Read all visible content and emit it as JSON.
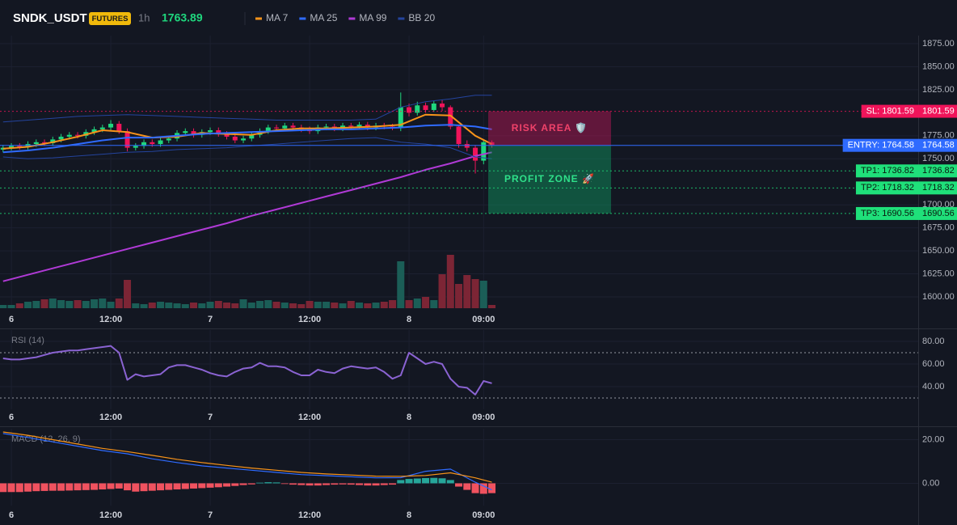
{
  "header": {
    "symbol": "SNDK_USDT",
    "badge": "FUTURES",
    "interval": "1h",
    "price": 1763.89
  },
  "chart_data": [
    {
      "type": "candlestick",
      "x": [
        -1,
        0,
        1,
        2,
        3,
        4,
        5,
        6,
        7,
        8,
        9,
        10,
        11,
        12,
        13,
        14,
        15,
        16,
        17,
        18,
        19,
        20,
        21,
        22,
        23,
        24,
        25,
        26,
        27,
        28,
        29,
        30,
        31,
        32,
        33,
        34,
        35,
        36,
        37,
        38,
        39,
        40,
        41,
        42,
        43,
        44,
        45,
        46,
        47,
        48,
        49,
        50,
        51,
        52,
        53,
        54,
        55,
        56,
        57,
        58
      ],
      "open": [
        1760,
        1762,
        1764,
        1763,
        1766,
        1768,
        1767,
        1771,
        1774,
        1776,
        1775,
        1779,
        1782,
        1784,
        1788,
        1780,
        1762,
        1764,
        1768,
        1766,
        1770,
        1772,
        1778,
        1780,
        1776,
        1779,
        1781,
        1777,
        1774,
        1770,
        1772,
        1776,
        1780,
        1784,
        1783,
        1786,
        1784,
        1782,
        1780,
        1784,
        1785,
        1783,
        1786,
        1785,
        1787,
        1784,
        1786,
        1785,
        1784,
        1806,
        1800,
        1808,
        1803,
        1810,
        1806,
        1785,
        1766,
        1762,
        1748,
        1768
      ],
      "high": [
        1765,
        1767,
        1767,
        1769,
        1771,
        1771,
        1774,
        1777,
        1779,
        1779,
        1782,
        1785,
        1787,
        1792,
        1791,
        1783,
        1767,
        1771,
        1771,
        1773,
        1775,
        1781,
        1783,
        1783,
        1782,
        1784,
        1784,
        1780,
        1777,
        1775,
        1779,
        1783,
        1787,
        1787,
        1789,
        1789,
        1787,
        1785,
        1787,
        1788,
        1788,
        1789,
        1789,
        1790,
        1790,
        1789,
        1789,
        1788,
        1822,
        1810,
        1812,
        1811,
        1813,
        1814,
        1808,
        1787,
        1770,
        1765,
        1771,
        1770
      ],
      "low": [
        1757,
        1759,
        1760,
        1760,
        1763,
        1764,
        1764,
        1768,
        1771,
        1772,
        1772,
        1776,
        1779,
        1781,
        1777,
        1758,
        1759,
        1761,
        1763,
        1763,
        1767,
        1769,
        1775,
        1773,
        1773,
        1776,
        1774,
        1771,
        1767,
        1767,
        1769,
        1773,
        1777,
        1780,
        1780,
        1781,
        1779,
        1777,
        1777,
        1781,
        1780,
        1780,
        1782,
        1782,
        1781,
        1781,
        1782,
        1781,
        1780,
        1796,
        1797,
        1800,
        1801,
        1802,
        1782,
        1762,
        1758,
        1734,
        1744,
        1762
      ],
      "close": [
        1762,
        1764,
        1763,
        1766,
        1768,
        1767,
        1771,
        1774,
        1776,
        1775,
        1779,
        1782,
        1784,
        1788,
        1780,
        1762,
        1764,
        1768,
        1766,
        1770,
        1772,
        1778,
        1780,
        1776,
        1779,
        1781,
        1777,
        1774,
        1770,
        1772,
        1776,
        1780,
        1784,
        1783,
        1786,
        1784,
        1782,
        1780,
        1784,
        1785,
        1783,
        1786,
        1785,
        1787,
        1784,
        1786,
        1785,
        1784,
        1806,
        1800,
        1808,
        1803,
        1810,
        1806,
        1785,
        1766,
        1762,
        1748,
        1768,
        1765
      ],
      "up_color": "#1fd77e",
      "down_color": "#f0145a",
      "volume": {
        "values": [
          4,
          4,
          6,
          8,
          9,
          11,
          12,
          10,
          9,
          10,
          9,
          11,
          12,
          8,
          12,
          35,
          6,
          5,
          7,
          8,
          7,
          6,
          5,
          7,
          6,
          8,
          9,
          7,
          6,
          11,
          7,
          9,
          10,
          8,
          7,
          6,
          5,
          9,
          8,
          8,
          7,
          6,
          9,
          7,
          6,
          7,
          8,
          10,
          58,
          10,
          12,
          14,
          10,
          42,
          66,
          30,
          41,
          36,
          34,
          4
        ],
        "ylim": [
          0,
          70
        ],
        "up_color": "#1b5e57",
        "down_color": "#7c2535"
      },
      "overlays": [
        {
          "name": "MA 7",
          "color": "#f7931a",
          "x": [
            -1,
            2,
            5,
            8,
            11,
            14,
            17,
            20,
            23,
            26,
            29,
            32,
            35,
            38,
            41,
            44,
            47,
            50,
            53,
            56,
            58
          ],
          "values": [
            1761,
            1763,
            1768,
            1774,
            1781,
            1779,
            1773,
            1774,
            1778,
            1777,
            1776,
            1781,
            1783,
            1783,
            1784,
            1785,
            1787,
            1798,
            1797,
            1775,
            1766
          ]
        },
        {
          "name": "MA 25",
          "color": "#2f6bff",
          "x": [
            -1,
            2,
            5,
            8,
            11,
            14,
            17,
            20,
            23,
            26,
            29,
            32,
            35,
            38,
            41,
            44,
            47,
            50,
            53,
            56,
            58
          ],
          "values": [
            1757,
            1759,
            1762,
            1766,
            1770,
            1773,
            1773,
            1775,
            1777,
            1778,
            1779,
            1780,
            1781,
            1782,
            1782,
            1783,
            1784,
            1786,
            1787,
            1785,
            1782
          ]
        },
        {
          "name": "MA 99",
          "color": "#b03ad6",
          "x": [
            -1,
            2,
            5,
            8,
            11,
            14,
            17,
            20,
            23,
            26,
            29,
            32,
            35,
            38,
            41,
            44,
            47,
            50,
            53,
            56,
            58
          ],
          "values": [
            1617,
            1624,
            1631,
            1638,
            1645,
            1652,
            1659,
            1666,
            1673,
            1680,
            1688,
            1695,
            1702,
            1709,
            1716,
            1723,
            1730,
            1738,
            1745,
            1753,
            1757
          ]
        },
        {
          "name": "BB 20",
          "color": "#24449e",
          "x": [
            -1,
            2,
            5,
            8,
            11,
            14,
            17,
            20,
            23,
            26,
            29,
            32,
            35,
            38,
            41,
            44,
            47,
            50,
            53,
            56,
            58
          ],
          "upper": [
            1790,
            1792,
            1794,
            1796,
            1797,
            1798,
            1797,
            1796,
            1795,
            1794,
            1793,
            1792,
            1792,
            1792,
            1792,
            1793,
            1806,
            1812,
            1815,
            1819,
            1819
          ],
          "lower": [
            1752,
            1750,
            1751,
            1753,
            1755,
            1757,
            1758,
            1760,
            1761,
            1762,
            1764,
            1766,
            1768,
            1770,
            1772,
            1773,
            1768,
            1766,
            1762,
            1752,
            1750
          ]
        }
      ],
      "levels": [
        {
          "label": "SL: 1801.59",
          "value": 1801.59,
          "color": "#f0145a",
          "text_color": "#ffffff",
          "style": "dotted"
        },
        {
          "label": "ENTRY: 1764.58",
          "value": 1764.58,
          "color": "#2f6bff",
          "text_color": "#ffffff",
          "style": "solid"
        },
        {
          "label": "TP1: 1736.82",
          "value": 1736.82,
          "color": "#1fe07a",
          "text_color": "#0b1a10",
          "style": "dotted"
        },
        {
          "label": "TP2: 1718.32",
          "value": 1718.32,
          "color": "#1fe07a",
          "text_color": "#0b1a10",
          "style": "dotted"
        },
        {
          "label": "TP3: 1690.56",
          "value": 1690.56,
          "color": "#1fe07a",
          "text_color": "#0b1a10",
          "style": "dotted"
        }
      ],
      "zones": [
        {
          "label": "RISK AREA 🛡️",
          "from": 1801.59,
          "to": 1764.58,
          "color": "#c2185b",
          "text_color": "#f0426a"
        },
        {
          "label": "PROFIT ZONE 🚀",
          "from": 1764.58,
          "to": 1690.56,
          "color": "#0f9d63",
          "text_color": "#2fe08a"
        }
      ],
      "xlim": [
        -1.37,
        109.46
      ],
      "ylim": [
        1587.7,
        1883.8
      ],
      "xticks": [
        {
          "value": 0,
          "label": "6"
        },
        {
          "value": 12,
          "label": "12:00"
        },
        {
          "value": 24,
          "label": "7"
        },
        {
          "value": 36,
          "label": "12:00"
        },
        {
          "value": 48,
          "label": "8"
        },
        {
          "value": 57,
          "label": "09:00"
        }
      ],
      "yticks": [
        {
          "value": 1875,
          "label": "1875.00"
        },
        {
          "value": 1850,
          "label": "1850.00"
        },
        {
          "value": 1825,
          "label": "1825.00"
        },
        {
          "value": 1775,
          "label": "1775.00"
        },
        {
          "value": 1750,
          "label": "1750.00"
        },
        {
          "value": 1700,
          "label": "1700.00"
        },
        {
          "value": 1675,
          "label": "1675.00"
        },
        {
          "value": 1650,
          "label": "1650.00"
        },
        {
          "value": 1625,
          "label": "1625.00"
        },
        {
          "value": 1600,
          "label": "1600.00"
        }
      ]
    },
    {
      "type": "line",
      "title": "RSI (14)",
      "x": [
        -1,
        0,
        1,
        2,
        3,
        4,
        5,
        6,
        7,
        8,
        9,
        10,
        11,
        12,
        13,
        14,
        15,
        16,
        17,
        18,
        19,
        20,
        21,
        22,
        23,
        24,
        25,
        26,
        27,
        28,
        29,
        30,
        31,
        32,
        33,
        34,
        35,
        36,
        37,
        38,
        39,
        40,
        41,
        42,
        43,
        44,
        45,
        46,
        47,
        48,
        49,
        50,
        51,
        52,
        53,
        54,
        55,
        56,
        57,
        58
      ],
      "series": [
        {
          "color": "#8a63d2",
          "values": [
            65,
            64,
            64,
            65,
            66,
            68,
            70,
            71,
            72,
            72,
            73,
            74,
            75,
            76,
            70,
            46,
            51,
            49,
            50,
            51,
            57,
            59,
            59,
            57,
            55,
            52,
            50,
            49,
            53,
            56,
            57,
            61,
            58,
            58,
            57,
            53,
            50,
            50,
            55,
            53,
            52,
            56,
            58,
            57,
            56,
            57,
            53,
            47,
            50,
            70,
            65,
            60,
            62,
            60,
            47,
            40,
            39,
            33,
            45,
            43
          ]
        }
      ],
      "levels": [
        70,
        30
      ],
      "xlim": [
        -1.37,
        109.46
      ],
      "ylim": [
        20,
        90
      ],
      "xticks": [
        {
          "value": 0,
          "label": "6"
        },
        {
          "value": 12,
          "label": "12:00"
        },
        {
          "value": 24,
          "label": "7"
        },
        {
          "value": 36,
          "label": "12:00"
        },
        {
          "value": 48,
          "label": "8"
        },
        {
          "value": 57,
          "label": "09:00"
        }
      ],
      "yticks": [
        {
          "value": 80,
          "label": "80.00"
        },
        {
          "value": 60,
          "label": "60.00"
        },
        {
          "value": 40,
          "label": "40.00"
        }
      ]
    },
    {
      "type": "macd",
      "title": "MACD (12, 26, 9)",
      "x": [
        -1,
        0,
        1,
        2,
        3,
        4,
        5,
        6,
        7,
        8,
        9,
        10,
        11,
        12,
        13,
        14,
        15,
        16,
        17,
        18,
        19,
        20,
        21,
        22,
        23,
        24,
        25,
        26,
        27,
        28,
        29,
        30,
        31,
        32,
        33,
        34,
        35,
        36,
        37,
        38,
        39,
        40,
        41,
        42,
        43,
        44,
        45,
        46,
        47,
        48,
        49,
        50,
        51,
        52,
        53,
        54,
        55,
        56,
        57,
        58
      ],
      "histogram": {
        "values": [
          -4,
          -4,
          -4,
          -3.8,
          -3.6,
          -3.5,
          -3.4,
          -3.4,
          -3.3,
          -3.2,
          -3.1,
          -3,
          -2.8,
          -2.6,
          -2.4,
          -3.2,
          -3.8,
          -3.6,
          -3.4,
          -3.2,
          -3,
          -2.8,
          -2.6,
          -2.4,
          -2.2,
          -2,
          -1.8,
          -1.5,
          -1.2,
          -0.8,
          -0.5,
          0.3,
          0.5,
          0.4,
          -0.3,
          -0.6,
          -0.8,
          -1,
          -1,
          -0.8,
          -0.6,
          -0.5,
          -0.6,
          -0.8,
          -1,
          -1,
          -0.8,
          -0.6,
          1.5,
          2,
          2.2,
          2.4,
          2.5,
          2.3,
          1.5,
          -1.5,
          -3,
          -4.5,
          -4.8,
          -4.5
        ],
        "up_color": "#26a69a",
        "down_color": "#f0525f"
      },
      "series": [
        {
          "color": "#2f6bff",
          "x": [
            -1,
            2,
            5,
            8,
            11,
            14,
            17,
            20,
            23,
            26,
            29,
            32,
            35,
            38,
            41,
            44,
            47,
            50,
            53,
            56,
            58
          ],
          "values": [
            22.8,
            21,
            19,
            17,
            15,
            13.5,
            11.2,
            9.5,
            8,
            7,
            6,
            5,
            4,
            3.5,
            3,
            2.5,
            2.6,
            5.5,
            6.5,
            0.5,
            -3
          ]
        },
        {
          "color": "#f7931a",
          "x": [
            -1,
            2,
            5,
            8,
            11,
            14,
            17,
            20,
            23,
            26,
            29,
            32,
            35,
            38,
            41,
            44,
            47,
            50,
            53,
            56,
            58
          ],
          "values": [
            23.5,
            22,
            20,
            18,
            16,
            14.5,
            12.8,
            11,
            9.5,
            8.2,
            7,
            6,
            5,
            4.3,
            3.8,
            3.3,
            3.2,
            3.6,
            4.8,
            2.5,
            0.5
          ]
        }
      ],
      "xlim": [
        -1.37,
        109.46
      ],
      "ylim": [
        -10.2,
        25
      ],
      "xticks": [
        {
          "value": 0,
          "label": "6"
        },
        {
          "value": 12,
          "label": "12:00"
        },
        {
          "value": 24,
          "label": "7"
        },
        {
          "value": 36,
          "label": "12:00"
        },
        {
          "value": 48,
          "label": "8"
        },
        {
          "value": 57,
          "label": "09:00"
        }
      ],
      "yticks": [
        {
          "value": 20,
          "label": "20.00"
        },
        {
          "value": 0,
          "label": "0.00"
        }
      ]
    }
  ]
}
